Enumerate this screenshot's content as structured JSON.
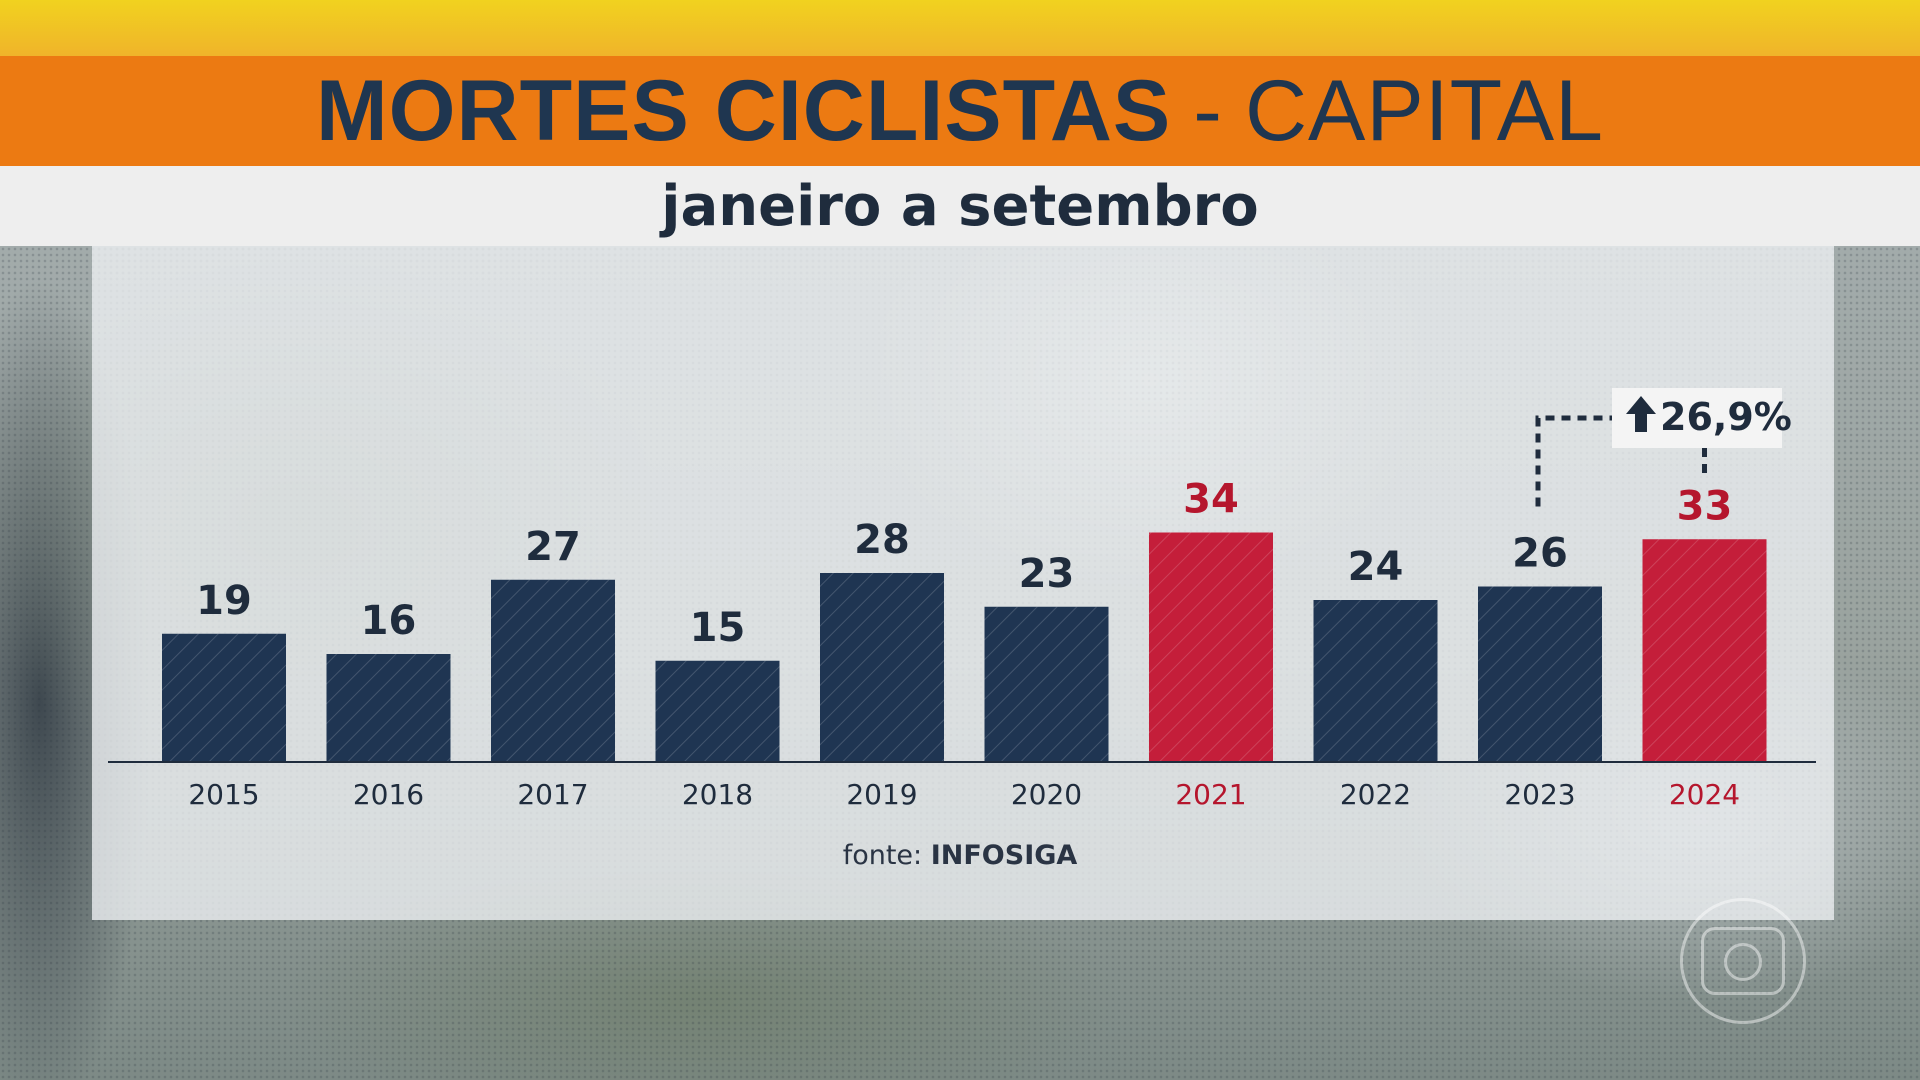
{
  "header": {
    "title_main": "MORTES CICLISTAS",
    "title_sep": "-",
    "title_sub": "CAPITAL",
    "subtitle": "janeiro a setembro"
  },
  "source": {
    "prefix": "fonte:",
    "name": "INFOSIGA"
  },
  "logo": {
    "icon": "globo-logo-icon"
  },
  "colors": {
    "bar_default": "#1f3552",
    "bar_highlight": "#c41e3a",
    "label_default": "#1f2c3d",
    "label_highlight": "#b5162d",
    "title_bar": "#ec7a12",
    "yellow_strip": "#f1d21f"
  },
  "chart_data": {
    "type": "bar",
    "title": "MORTES CICLISTAS - CAPITAL",
    "subtitle": "janeiro a setembro",
    "categories": [
      "2015",
      "2016",
      "2017",
      "2018",
      "2019",
      "2020",
      "2021",
      "2022",
      "2023",
      "2024"
    ],
    "values": [
      19,
      16,
      27,
      15,
      28,
      23,
      34,
      24,
      26,
      33
    ],
    "highlighted": [
      "2021",
      "2024"
    ],
    "ylim": [
      0,
      40
    ],
    "grid": false,
    "legend": "none",
    "annotation": {
      "text": "26,9%",
      "icon": "arrow-up-icon",
      "from": "2023",
      "to": "2024"
    }
  }
}
